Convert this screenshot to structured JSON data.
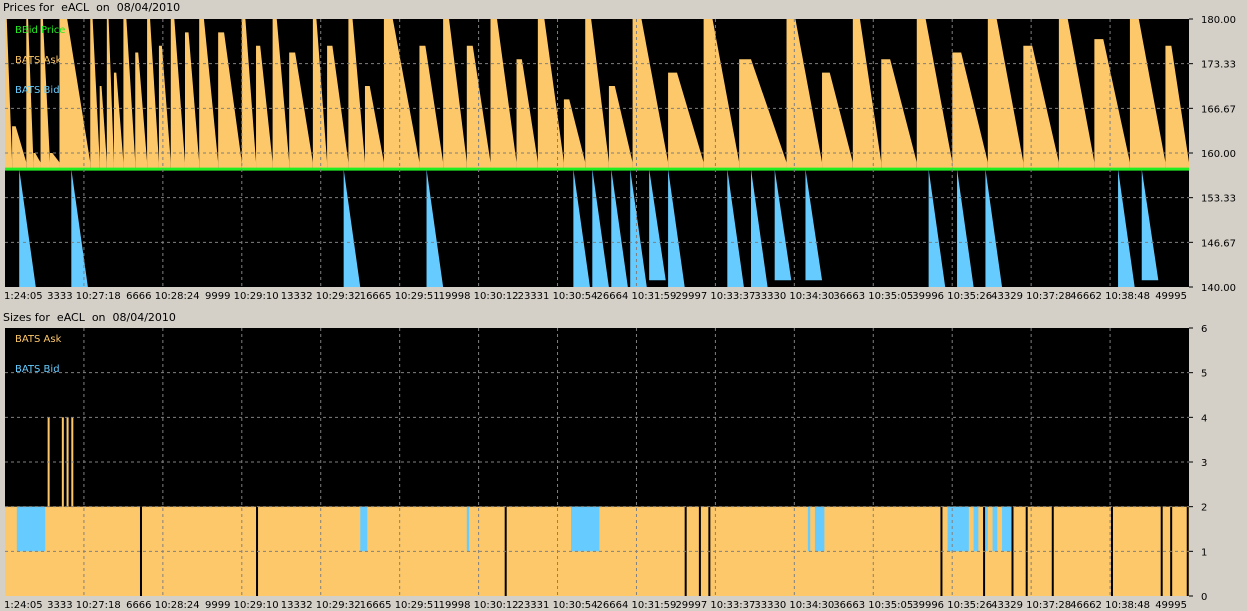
{
  "colors": {
    "background": "#000000",
    "ask": "#fdc86a",
    "bid": "#66ccff",
    "bbid": "#22ee22",
    "grid": "#808080",
    "frame": "#d4d0c8"
  },
  "price_panel": {
    "title": "Prices for  eACL  on  08/04/2010",
    "legend": [
      "BBid Price",
      "BATS Ask",
      "BATS Bid"
    ]
  },
  "size_panel": {
    "title": "Sizes for  eACL  on  08/04/2010",
    "legend": [
      "BATS Ask",
      "BATS Bid"
    ]
  },
  "chart_data": [
    {
      "type": "area",
      "title": "Prices for  eACL  on  08/04/2010",
      "series": [
        {
          "name": "BBid Price",
          "color": "#22ee22",
          "values_note": "",
          "level": 157.6
        },
        {
          "name": "BATS Ask",
          "color": "#fdc86a"
        },
        {
          "name": "BATS Bid",
          "color": "#66ccff"
        }
      ],
      "ylim": [
        140,
        180
      ],
      "y_ticks": [
        "180.00",
        "173.33",
        "166.67",
        "160.00",
        "153.33",
        "146.67",
        "140.00"
      ],
      "x_ticks": [
        "1:24:05",
        "3333 10:27:18",
        "6666 10:28:24",
        "9999 10:29:10",
        "13332 10:29:32",
        "16665 10:29:51",
        "19998 10:30:12",
        "23331 10:30:54",
        "26664 10:31:59",
        "29997 10:33:37",
        "33330 10:34:30",
        "36663 10:35:05",
        "39996 10:35:26",
        "43329 10:37:28",
        "46662 10:38:48",
        "49995"
      ],
      "xlim": [
        0,
        49995
      ],
      "grid": true,
      "legend_position": "top-left",
      "bbid_level": 157.6,
      "ask_spikes": [
        [
          0,
          180
        ],
        [
          300,
          164
        ],
        [
          900,
          180
        ],
        [
          1200,
          160
        ],
        [
          1500,
          180
        ],
        [
          1900,
          160
        ],
        [
          2300,
          180
        ],
        [
          3600,
          180
        ],
        [
          4000,
          170
        ],
        [
          4300,
          180
        ],
        [
          4600,
          172
        ],
        [
          5000,
          180
        ],
        [
          5500,
          175
        ],
        [
          6000,
          180
        ],
        [
          6500,
          176
        ],
        [
          7000,
          180
        ],
        [
          7600,
          178
        ],
        [
          8200,
          180
        ],
        [
          9000,
          178
        ],
        [
          10000,
          180
        ],
        [
          10600,
          176
        ],
        [
          11300,
          180
        ],
        [
          12000,
          175
        ],
        [
          13000,
          180
        ],
        [
          13600,
          176
        ],
        [
          14500,
          180
        ],
        [
          15200,
          170
        ],
        [
          16000,
          180
        ],
        [
          17500,
          176
        ],
        [
          18500,
          180
        ],
        [
          19500,
          176
        ],
        [
          20500,
          180
        ],
        [
          21600,
          174
        ],
        [
          22500,
          180
        ],
        [
          23600,
          168
        ],
        [
          24500,
          180
        ],
        [
          25500,
          170
        ],
        [
          26500,
          180
        ],
        [
          28000,
          172
        ],
        [
          29500,
          180
        ],
        [
          31000,
          174
        ],
        [
          33000,
          180
        ],
        [
          34500,
          172
        ],
        [
          35800,
          180
        ],
        [
          37000,
          174
        ],
        [
          38500,
          180
        ],
        [
          40000,
          175
        ],
        [
          41500,
          180
        ],
        [
          43000,
          176
        ],
        [
          44500,
          180
        ],
        [
          46000,
          177
        ],
        [
          47500,
          180
        ],
        [
          49000,
          176
        ],
        [
          49995,
          180
        ]
      ],
      "bid_drops": [
        [
          600,
          140
        ],
        [
          2800,
          140
        ],
        [
          14300,
          140
        ],
        [
          17800,
          140
        ],
        [
          24000,
          140
        ],
        [
          24800,
          140
        ],
        [
          25600,
          140
        ],
        [
          26400,
          140
        ],
        [
          27200,
          141
        ],
        [
          28000,
          140
        ],
        [
          30500,
          140
        ],
        [
          31500,
          140
        ],
        [
          32500,
          141
        ],
        [
          33800,
          141
        ],
        [
          39000,
          140
        ],
        [
          40200,
          140
        ],
        [
          41400,
          140
        ],
        [
          47000,
          140
        ],
        [
          48000,
          141
        ]
      ]
    },
    {
      "type": "bar",
      "title": "Sizes for  eACL  on  08/04/2010",
      "series": [
        {
          "name": "BATS Ask",
          "color": "#fdc86a",
          "typical_value": 2
        },
        {
          "name": "BATS Bid",
          "color": "#66ccff",
          "typical_value": 2
        }
      ],
      "ylim": [
        0,
        6
      ],
      "y_ticks": [
        "6",
        "5",
        "4",
        "3",
        "2",
        "1",
        "0"
      ],
      "x_ticks": [
        "1:24:05",
        "3333 10:27:18",
        "6666 10:28:24",
        "9999 10:29:10",
        "13332 10:29:32",
        "16665 10:29:51",
        "19998 10:30:12",
        "23331 10:30:54",
        "26664 10:31:59",
        "29997 10:33:37",
        "33330 10:34:30",
        "36663 10:35:05",
        "39996 10:35:26",
        "43329 10:37:28",
        "46662 10:38:48",
        "49995"
      ],
      "xlim": [
        0,
        49995
      ],
      "grid": true,
      "legend_position": "top-left",
      "ask_level": 2,
      "ask_spikes_to_4": [
        1800,
        2400,
        2600,
        2800
      ],
      "bid_blocks": [
        [
          500,
          1700,
          2
        ],
        [
          15000,
          15300,
          2
        ],
        [
          19500,
          19600,
          2
        ],
        [
          23900,
          25100,
          2
        ],
        [
          33900,
          34000,
          2
        ],
        [
          34200,
          34600,
          2
        ],
        [
          39800,
          40700,
          2
        ],
        [
          40900,
          41100,
          2
        ],
        [
          41300,
          41500,
          2
        ],
        [
          41700,
          41900,
          2
        ],
        [
          42100,
          42500,
          2
        ]
      ],
      "gaps": [
        5700,
        10600,
        21100,
        28700,
        29300,
        29700,
        39500,
        41300,
        42500,
        43100,
        44200,
        46700,
        48800,
        49200,
        49900
      ]
    }
  ]
}
